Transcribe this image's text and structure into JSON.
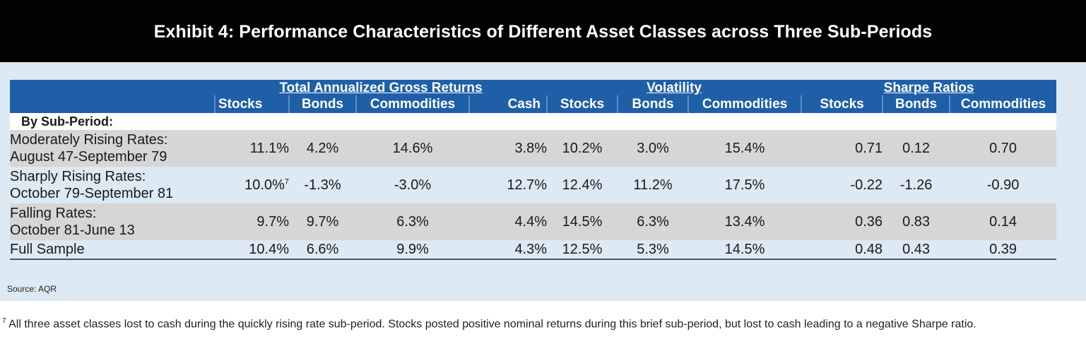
{
  "title": "Exhibit 4: Performance Characteristics of Different Asset Classes across Three Sub-Periods",
  "groups": {
    "returns": "Total Annualized Gross Returns",
    "volatility": "Volatility",
    "sharpe": "Sharpe Ratios"
  },
  "columns": [
    "Stocks",
    "Bonds",
    "Commodities",
    "Cash",
    "Stocks",
    "Bonds",
    "Commodities",
    "Stocks",
    "Bonds",
    "Commodities"
  ],
  "section_label": "By Sub-Period:",
  "rows": [
    {
      "label_line1": "Moderately Rising Rates:",
      "label_line2": "August 47-September 79",
      "values": [
        "11.1%",
        "4.2%",
        "14.6%",
        "3.8%",
        "10.2%",
        "3.0%",
        "15.4%",
        "0.71",
        "0.12",
        "0.70"
      ]
    },
    {
      "label_line1": "Sharply Rising Rates:",
      "label_line2": "October 79-September 81",
      "values": [
        "10.0%",
        "-1.3%",
        "-3.0%",
        "12.7%",
        "12.4%",
        "11.2%",
        "17.5%",
        "-0.22",
        "-1.26",
        "-0.90"
      ],
      "footnote_mark": "7"
    },
    {
      "label_line1": "Falling Rates:",
      "label_line2": "October 81-June 13",
      "values": [
        "9.7%",
        "9.7%",
        "6.3%",
        "4.4%",
        "14.5%",
        "6.3%",
        "13.4%",
        "0.36",
        "0.83",
        "0.14"
      ]
    },
    {
      "label_line1": "Full Sample",
      "label_line2": "",
      "values": [
        "10.4%",
        "6.6%",
        "9.9%",
        "4.3%",
        "12.5%",
        "5.3%",
        "14.5%",
        "0.48",
        "0.43",
        "0.39"
      ]
    }
  ],
  "source": "Source: AQR",
  "footnote": {
    "mark": "7",
    "text": " All three asset classes lost to cash during the quickly rising rate sub-period. Stocks posted positive nominal returns during this brief sub-period, but lost to cash leading to a negative Sharpe ratio."
  }
}
